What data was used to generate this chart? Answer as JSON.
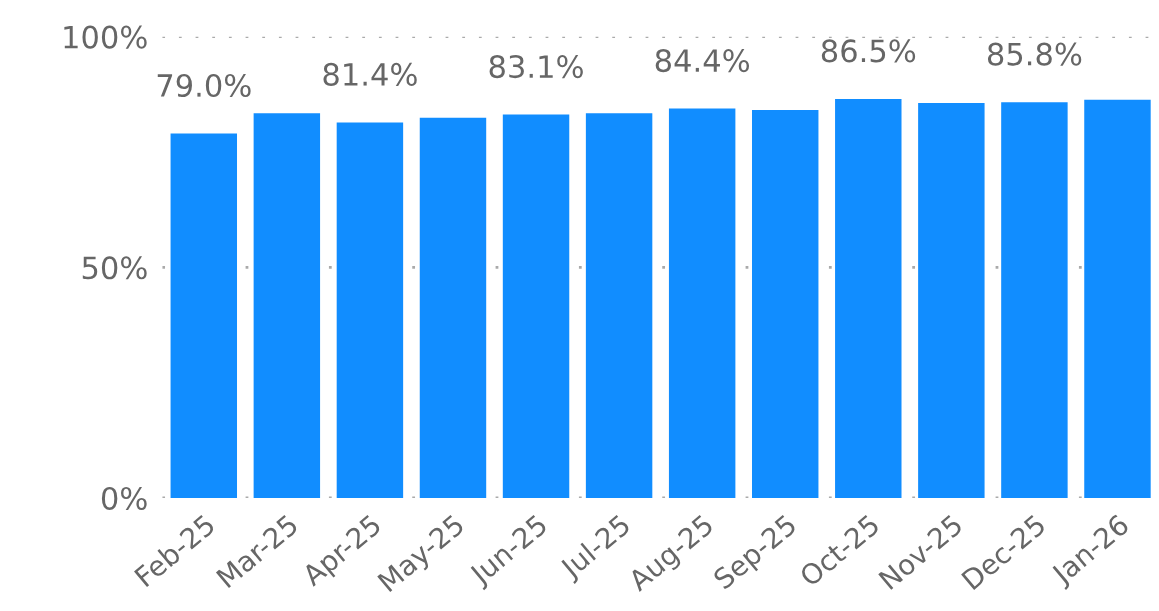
{
  "chart_data": {
    "type": "bar",
    "categories": [
      "Feb-25",
      "Mar-25",
      "Apr-25",
      "May-25",
      "Jun-25",
      "Jul-25",
      "Aug-25",
      "Sep-25",
      "Oct-25",
      "Nov-25",
      "Dec-25",
      "Jan-26"
    ],
    "values": [
      79.0,
      83.4,
      81.4,
      82.4,
      83.1,
      83.4,
      84.4,
      84.1,
      86.5,
      85.6,
      85.8,
      86.3
    ],
    "value_labels": [
      "79.0%",
      null,
      "81.4%",
      null,
      "83.1%",
      null,
      "84.4%",
      null,
      "86.5%",
      null,
      "85.8%",
      null
    ],
    "color": "#118dff",
    "ylim": [
      0,
      100
    ],
    "yticks": [
      {
        "value": 0,
        "label": "0%"
      },
      {
        "value": 50,
        "label": "50%"
      },
      {
        "value": 100,
        "label": "100%"
      }
    ],
    "grid": "y"
  }
}
